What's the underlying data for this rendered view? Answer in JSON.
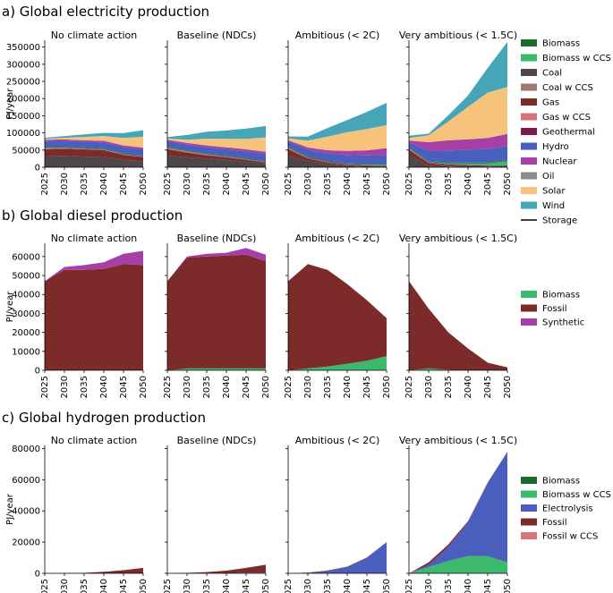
{
  "figure": {
    "x_ticks": [
      "2025",
      "2030",
      "2035",
      "2040",
      "2045",
      "2050"
    ],
    "scenarios": [
      "No climate action",
      "Baseline (NDCs)",
      "Ambitious (< 2C)",
      "Very ambitious (< 1.5C)"
    ]
  },
  "chart_data": [
    {
      "id": "electricity",
      "type": "area",
      "title": "a) Global electricity production",
      "ylabel": "PJ/year",
      "ylim": [
        0,
        370000
      ],
      "yticks": [
        0,
        50000,
        100000,
        150000,
        200000,
        250000,
        300000,
        350000
      ],
      "ytick_labels": [
        "0",
        "50000",
        "100000",
        "150000",
        "200000",
        "250000",
        "300000",
        "350000"
      ],
      "x": [
        2025,
        2030,
        2035,
        2040,
        2045,
        2050
      ],
      "legend": [
        "Biomass",
        "Biomass w CCS",
        "Coal",
        "Coal w CCS",
        "Gas",
        "Gas w CCS",
        "Geothermal",
        "Hydro",
        "Nuclear",
        "Oil",
        "Solar",
        "Wind",
        "Storage"
      ],
      "series_order": [
        "Coal",
        "Gas",
        "Oil",
        "Geothermal",
        "Biomass w CCS",
        "Biomass",
        "Hydro",
        "Nuclear",
        "Solar",
        "Wind"
      ],
      "colors": {
        "Biomass": "#1a6b2a",
        "Biomass w CCS": "#3cb96a",
        "Coal": "#4d4749",
        "Coal w CCS": "#9b7b6c",
        "Gas": "#7d2a2a",
        "Gas w CCS": "#d9737a",
        "Geothermal": "#7a1a4f",
        "Hydro": "#4a5fbd",
        "Nuclear": "#a63fa8",
        "Oil": "#8c8c8c",
        "Solar": "#f7c27b",
        "Wind": "#46a6b8",
        "Storage": "#000000"
      },
      "panels": [
        {
          "scenario": "No climate action",
          "series": {
            "Coal": [
              34000,
              33000,
              31000,
              30000,
              22000,
              17000
            ],
            "Gas": [
              19000,
              21000,
              21000,
              20000,
              14000,
              13000
            ],
            "Oil": [
              4000,
              3000,
              2500,
              2000,
              1500,
              1000
            ],
            "Geothermal": [
              1000,
              1000,
              1000,
              1000,
              1000,
              1000
            ],
            "Biomass w CCS": [
              0,
              0,
              0,
              0,
              0,
              0
            ],
            "Biomass": [
              2000,
              2000,
              2000,
              2000,
              2000,
              2000
            ],
            "Hydro": [
              16000,
              17000,
              17000,
              17000,
              18000,
              18000
            ],
            "Nuclear": [
              4000,
              4000,
              4000,
              5000,
              5000,
              5000
            ],
            "Solar": [
              3000,
              5000,
              10000,
              14000,
              22000,
              32000
            ],
            "Wind": [
              3000,
              5000,
              7000,
              9000,
              14000,
              19000
            ]
          }
        },
        {
          "scenario": "Baseline (NDCs)",
          "series": {
            "Coal": [
              34000,
              29000,
              25000,
              21000,
              16000,
              10000
            ],
            "Gas": [
              19000,
              14000,
              10000,
              8000,
              6000,
              4000
            ],
            "Oil": [
              4000,
              3000,
              2500,
              2000,
              1500,
              1000
            ],
            "Geothermal": [
              1000,
              1000,
              1000,
              1000,
              1000,
              1000
            ],
            "Biomass w CCS": [
              0,
              0,
              0,
              0,
              0,
              0
            ],
            "Biomass": [
              2000,
              2000,
              2000,
              2000,
              2000,
              2000
            ],
            "Hydro": [
              16000,
              17000,
              18000,
              19000,
              20000,
              21000
            ],
            "Nuclear": [
              4000,
              5000,
              5000,
              5000,
              6000,
              6000
            ],
            "Solar": [
              4000,
              9000,
              20000,
              25000,
              30000,
              42000
            ],
            "Wind": [
              4000,
              14000,
              20000,
              24000,
              30000,
              33000
            ]
          }
        },
        {
          "scenario": "Ambitious (< 2C)",
          "series": {
            "Coal": [
              34000,
              18000,
              8000,
              3000,
              1000,
              500
            ],
            "Gas": [
              19000,
              8000,
              5000,
              3000,
              2000,
              2000
            ],
            "Oil": [
              4000,
              2000,
              1000,
              500,
              300,
              200
            ],
            "Geothermal": [
              1000,
              1500,
              2000,
              2000,
              2000,
              2000
            ],
            "Biomass w CCS": [
              0,
              0,
              500,
              1000,
              2000,
              3000
            ],
            "Biomass": [
              2000,
              2000,
              2000,
              2000,
              2000,
              2000
            ],
            "Hydro": [
              15000,
              20000,
              22000,
              24000,
              25000,
              26000
            ],
            "Nuclear": [
              4000,
              6000,
              9000,
              12000,
              15000,
              20000
            ],
            "Solar": [
              5000,
              20000,
              40000,
              55000,
              62000,
              67000
            ],
            "Wind": [
              6000,
              12000,
              25000,
              35000,
              50000,
              65000
            ]
          }
        },
        {
          "scenario": "Very ambitious (< 1.5C)",
          "series": {
            "Coal": [
              34000,
              5000,
              2000,
              1000,
              500,
              0
            ],
            "Gas": [
              17000,
              7000,
              3000,
              2000,
              1000,
              1000
            ],
            "Oil": [
              4000,
              1000,
              500,
              200,
              0,
              0
            ],
            "Geothermal": [
              1000,
              2000,
              3000,
              3000,
              3000,
              3000
            ],
            "Biomass w CCS": [
              0,
              1000,
              3000,
              5000,
              7000,
              14000
            ],
            "Biomass": [
              2000,
              2000,
              2000,
              2000,
              2000,
              2000
            ],
            "Hydro": [
              15000,
              30000,
              35000,
              38000,
              40000,
              42000
            ],
            "Nuclear": [
              5000,
              25000,
              30000,
              30000,
              32000,
              35000
            ],
            "Solar": [
              7000,
              20000,
              55000,
              95000,
              132000,
              137000
            ],
            "Wind": [
              7000,
              5000,
              18000,
              33000,
              72000,
              131000
            ]
          }
        }
      ]
    },
    {
      "id": "diesel",
      "type": "area",
      "title": "b) Global diesel production",
      "ylabel": "PJ/year",
      "ylim": [
        0,
        67000
      ],
      "yticks": [
        0,
        10000,
        20000,
        30000,
        40000,
        50000,
        60000
      ],
      "ytick_labels": [
        "0",
        "10000",
        "20000",
        "30000",
        "40000",
        "50000",
        "60000"
      ],
      "x": [
        2025,
        2030,
        2035,
        2040,
        2045,
        2050
      ],
      "legend": [
        "Biomass",
        "Fossil",
        "Synthetic"
      ],
      "series_order": [
        "Biomass",
        "Fossil",
        "Synthetic"
      ],
      "colors": {
        "Biomass": "#3cb96a",
        "Fossil": "#7d2a2a",
        "Synthetic": "#a63fa8"
      },
      "panels": [
        {
          "scenario": "No climate action",
          "series": {
            "Biomass": [
              0,
              0,
              0,
              0,
              0,
              0
            ],
            "Fossil": [
              47000,
              53000,
              53000,
              53500,
              56000,
              55500
            ],
            "Synthetic": [
              0,
              1500,
              2500,
              3500,
              5500,
              7500
            ]
          }
        },
        {
          "scenario": "Baseline (NDCs)",
          "series": {
            "Biomass": [
              0,
              1000,
              1000,
              1000,
              1000,
              1000
            ],
            "Fossil": [
              47000,
              58500,
              59000,
              59500,
              60000,
              56500
            ],
            "Synthetic": [
              0,
              500,
              1500,
              1500,
              3500,
              3500
            ]
          }
        },
        {
          "scenario": "Ambitious (< 2C)",
          "series": {
            "Biomass": [
              0,
              1000,
              2000,
              3500,
              5000,
              7500
            ],
            "Fossil": [
              47000,
              55000,
              51000,
              42000,
              32000,
              20000
            ],
            "Synthetic": [
              0,
              0,
              0,
              0,
              0,
              0
            ]
          }
        },
        {
          "scenario": "Very ambitious (< 1.5C)",
          "series": {
            "Biomass": [
              0,
              1000,
              300,
              0,
              0,
              0
            ],
            "Fossil": [
              47000,
              31500,
              19700,
              11500,
              4000,
              1500
            ],
            "Synthetic": [
              0,
              0,
              0,
              0,
              0,
              0
            ]
          }
        }
      ]
    },
    {
      "id": "hydrogen",
      "type": "area",
      "title": "c) Global hydrogen production",
      "ylabel": "PJ/year",
      "ylim": [
        0,
        82000
      ],
      "yticks": [
        0,
        20000,
        40000,
        60000,
        80000
      ],
      "ytick_labels": [
        "0",
        "20000",
        "40000",
        "60000",
        "80000"
      ],
      "x": [
        2025,
        2030,
        2035,
        2040,
        2045,
        2050
      ],
      "legend": [
        "Biomass",
        "Biomass w CCS",
        "Electrolysis",
        "Fossil",
        "Fossil w CCS"
      ],
      "series_order": [
        "Biomass",
        "Biomass w CCS",
        "Electrolysis",
        "Fossil",
        "Fossil w CCS"
      ],
      "colors": {
        "Biomass": "#1a6b2a",
        "Biomass w CCS": "#3cb96a",
        "Electrolysis": "#4a5fbd",
        "Fossil": "#7d2a2a",
        "Fossil w CCS": "#d9737a"
      },
      "panels": [
        {
          "scenario": "No climate action",
          "series": {
            "Biomass": [
              0,
              0,
              0,
              0,
              0,
              0
            ],
            "Biomass w CCS": [
              0,
              0,
              0,
              0,
              0,
              0
            ],
            "Electrolysis": [
              0,
              0,
              0,
              0,
              0,
              0
            ],
            "Fossil": [
              0,
              100,
              300,
              1000,
              2000,
              3500
            ],
            "Fossil w CCS": [
              0,
              0,
              0,
              0,
              0,
              0
            ]
          }
        },
        {
          "scenario": "Baseline (NDCs)",
          "series": {
            "Biomass": [
              0,
              0,
              0,
              0,
              0,
              0
            ],
            "Biomass w CCS": [
              0,
              0,
              0,
              0,
              0,
              0
            ],
            "Electrolysis": [
              0,
              0,
              100,
              200,
              500,
              500
            ],
            "Fossil": [
              0,
              300,
              700,
              1500,
              3000,
              5000
            ],
            "Fossil w CCS": [
              0,
              0,
              0,
              0,
              0,
              0
            ]
          }
        },
        {
          "scenario": "Ambitious (< 2C)",
          "series": {
            "Biomass": [
              0,
              0,
              0,
              0,
              0,
              0
            ],
            "Biomass w CCS": [
              0,
              0,
              0,
              0,
              0,
              0
            ],
            "Electrolysis": [
              0,
              300,
              1500,
              4000,
              10000,
              20000
            ],
            "Fossil": [
              0,
              200,
              300,
              300,
              200,
              0
            ],
            "Fossil w CCS": [
              0,
              0,
              0,
              0,
              0,
              0
            ]
          }
        },
        {
          "scenario": "Very ambitious (< 1.5C)",
          "series": {
            "Biomass": [
              0,
              0,
              0,
              0,
              0,
              0
            ],
            "Biomass w CCS": [
              0,
              4000,
              8000,
              11000,
              11000,
              7000
            ],
            "Electrolysis": [
              0,
              1500,
              9000,
              22000,
              47000,
              71000
            ],
            "Fossil": [
              0,
              1500,
              1500,
              500,
              0,
              0
            ],
            "Fossil w CCS": [
              0,
              0,
              0,
              0,
              500,
              0
            ]
          }
        }
      ]
    }
  ]
}
